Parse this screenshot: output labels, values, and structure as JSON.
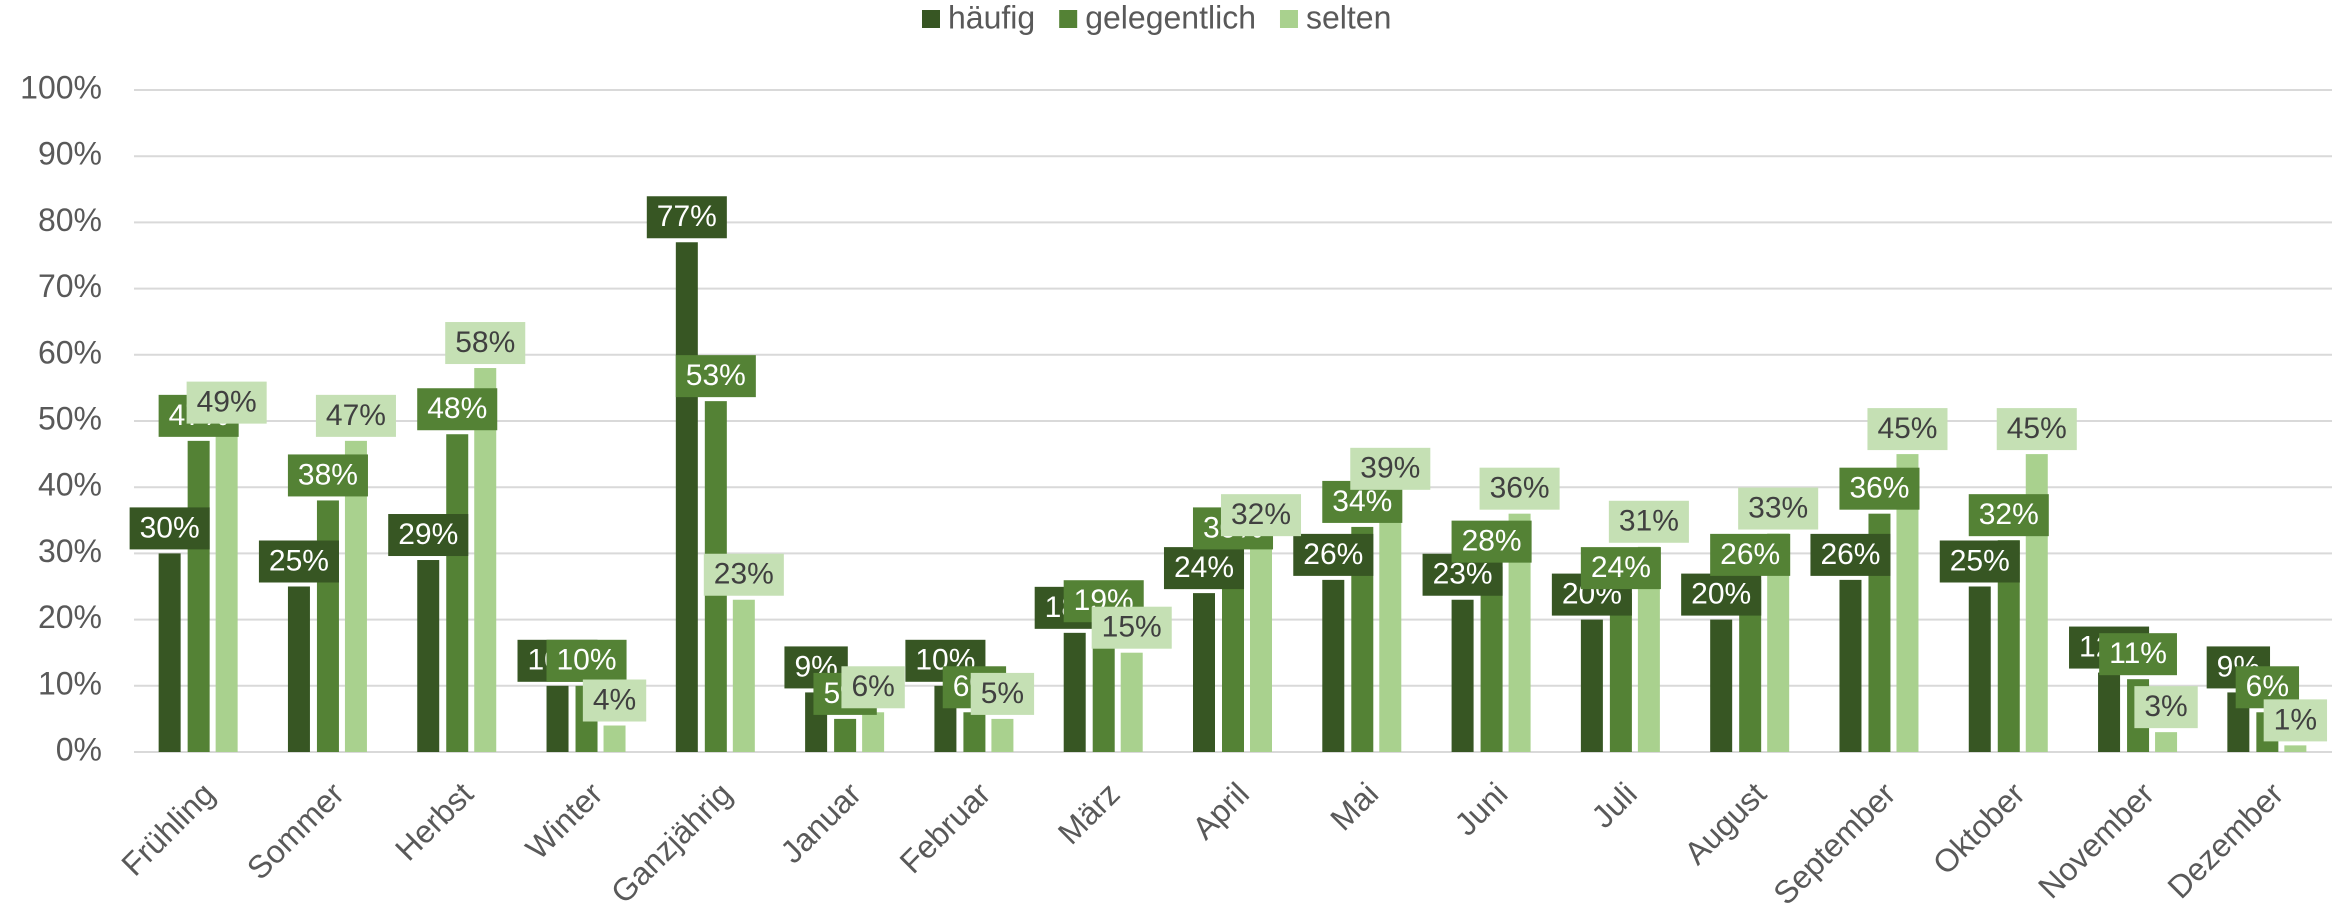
{
  "chart_data": {
    "type": "bar",
    "categories": [
      "Frühling",
      "Sommer",
      "Herbst",
      "Winter",
      "Ganzjährig",
      "Januar",
      "Februar",
      "März",
      "April",
      "Mai",
      "Juni",
      "Juli",
      "August",
      "September",
      "Oktober",
      "November",
      "Dezember"
    ],
    "series": [
      {
        "name": "häufig",
        "color": "#375623",
        "values": [
          30,
          25,
          29,
          10,
          77,
          9,
          10,
          18,
          24,
          26,
          23,
          20,
          20,
          26,
          25,
          12,
          9
        ],
        "value_labels": [
          "30%",
          "25%",
          "29%",
          "10%",
          "77%",
          "9%",
          "10%",
          "18%",
          "24%",
          "26%",
          "23%",
          "20%",
          "20%",
          "26%",
          "25%",
          "12%",
          "9%"
        ]
      },
      {
        "name": "gelegentlich",
        "color": "#548235",
        "values": [
          47,
          38,
          48,
          10,
          53,
          5,
          6,
          19,
          30,
          34,
          28,
          24,
          26,
          36,
          32,
          11,
          6
        ],
        "value_labels": [
          "47%",
          "38%",
          "48%",
          "10%",
          "53%",
          "5%",
          "6%",
          "19%",
          "30%",
          "34%",
          "28%",
          "24%",
          "26%",
          "36%",
          "32%",
          "11%",
          "6%"
        ]
      },
      {
        "name": "selten",
        "color": "#a9d18e",
        "values": [
          49,
          47,
          58,
          4,
          23,
          6,
          5,
          15,
          32,
          39,
          36,
          31,
          33,
          45,
          45,
          3,
          1
        ],
        "value_labels": [
          "49%",
          "47%",
          "58%",
          "4%",
          "23%",
          "6%",
          "5%",
          "15%",
          "32%",
          "39%",
          "36%",
          "31%",
          "33%",
          "45%",
          "45%",
          "3%",
          "1%"
        ]
      }
    ],
    "ylim": [
      0,
      100
    ],
    "yticks": [
      {
        "value": 0,
        "label": "0%"
      },
      {
        "value": 10,
        "label": "10%"
      },
      {
        "value": 20,
        "label": "20%"
      },
      {
        "value": 30,
        "label": "30%"
      },
      {
        "value": 40,
        "label": "40%"
      },
      {
        "value": 50,
        "label": "50%"
      },
      {
        "value": 60,
        "label": "60%"
      },
      {
        "value": 70,
        "label": "70%"
      },
      {
        "value": 80,
        "label": "80%"
      },
      {
        "value": 90,
        "label": "90%"
      },
      {
        "value": 100,
        "label": "100%"
      }
    ],
    "grid": true,
    "legend": "top"
  }
}
